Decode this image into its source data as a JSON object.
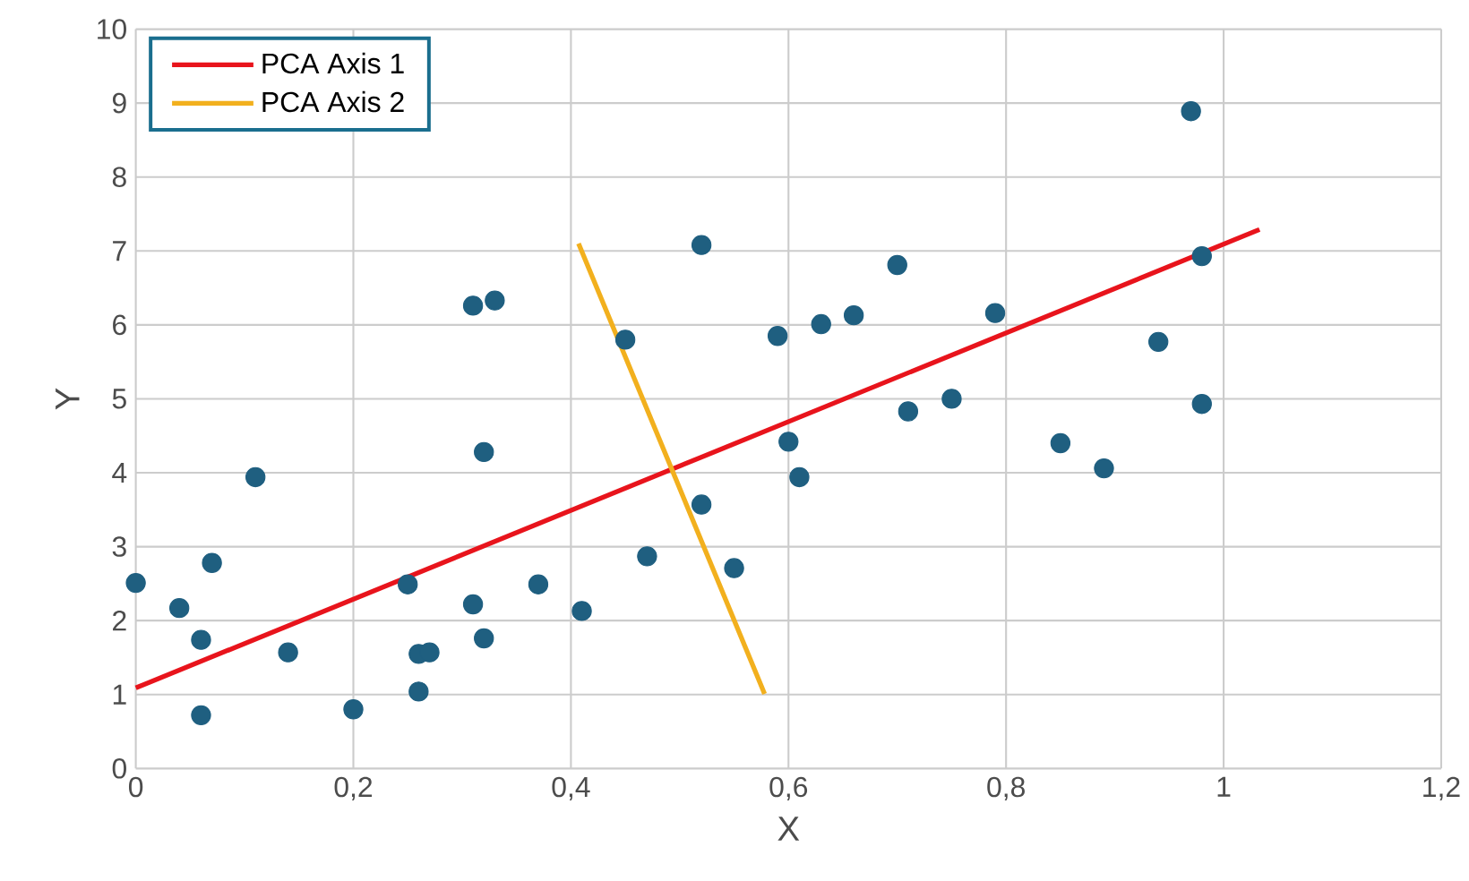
{
  "chart_data": {
    "type": "scatter",
    "xlabel": "X",
    "ylabel": "Y",
    "xlim": [
      0,
      1.2
    ],
    "ylim": [
      0,
      10
    ],
    "xticks": [
      0,
      {
        "value": 0.2,
        "label": "0,2"
      },
      {
        "value": 0.4,
        "label": "0,4"
      },
      {
        "value": 0.6,
        "label": "0,6"
      },
      {
        "value": 0.8,
        "label": "0,8"
      },
      1,
      {
        "value": 1.2,
        "label": "1,2"
      }
    ],
    "yticks": [
      0,
      1,
      2,
      3,
      4,
      5,
      6,
      7,
      8,
      9,
      10
    ],
    "grid": true,
    "legend": "top left",
    "series": [
      {
        "marker": "circle",
        "color": "#1f5f80",
        "x": [
          0,
          0.04,
          0.06,
          0.06,
          0.07,
          0.11,
          0.14,
          0.2,
          0.25,
          0.26,
          0.27,
          0.26,
          0.31,
          0.31,
          0.33,
          0.32,
          0.32,
          0.37,
          0.41,
          0.45,
          0.47,
          0.52,
          0.52,
          0.55,
          0.59,
          0.6,
          0.61,
          0.63,
          0.66,
          0.7,
          0.71,
          0.75,
          0.79,
          0.85,
          0.89,
          0.94,
          0.97,
          0.98,
          0.98
        ],
        "values": [
          2.51,
          2.17,
          1.74,
          0.72,
          2.78,
          3.94,
          1.57,
          0.8,
          2.49,
          1.55,
          1.57,
          1.04,
          2.22,
          6.26,
          6.33,
          4.28,
          1.76,
          2.49,
          2.13,
          5.8,
          2.87,
          7.08,
          3.57,
          2.71,
          5.85,
          4.42,
          3.94,
          6.01,
          6.13,
          6.81,
          4.83,
          5,
          6.16,
          4.4,
          4.06,
          5.77,
          8.89,
          6.93,
          4.93
        ]
      },
      {
        "type": "line",
        "marker": "none",
        "name": "PCA Axis 1",
        "color": "#e8141c",
        "x": [
          0,
          1.033
        ],
        "values": [
          1.09,
          7.29
        ]
      },
      {
        "type": "line",
        "marker": "none",
        "name": "PCA Axis 2",
        "color": "#f2b01e",
        "x": [
          0.407,
          0.578
        ],
        "values": [
          7.1,
          1.01
        ]
      }
    ]
  }
}
